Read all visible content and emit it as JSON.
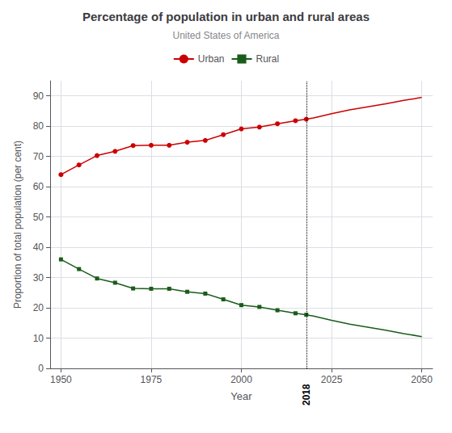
{
  "chart_data": {
    "type": "line",
    "title": "Percentage of population in urban and rural areas",
    "subtitle": "United States of America",
    "xlabel": "Year",
    "ylabel": "Proportion of total population (per cent)",
    "x": [
      1950,
      1955,
      1960,
      1965,
      1970,
      1975,
      1980,
      1985,
      1990,
      1995,
      2000,
      2005,
      2010,
      2015,
      2018,
      2020,
      2025,
      2030,
      2035,
      2040,
      2045,
      2050
    ],
    "series": [
      {
        "name": "Urban",
        "color": "#cc0000",
        "marker": "circle",
        "values": [
          64.0,
          67.2,
          70.3,
          71.7,
          73.6,
          73.7,
          73.7,
          74.7,
          75.3,
          77.2,
          79.1,
          79.7,
          80.8,
          81.8,
          82.3,
          82.7,
          84.1,
          85.4,
          86.4,
          87.4,
          88.5,
          89.5
        ]
      },
      {
        "name": "Rural",
        "color": "#1a5c1a",
        "marker": "square",
        "values": [
          36.0,
          32.8,
          29.7,
          28.3,
          26.4,
          26.3,
          26.3,
          25.3,
          24.7,
          22.8,
          20.9,
          20.3,
          19.2,
          18.2,
          17.7,
          17.3,
          15.9,
          14.6,
          13.6,
          12.6,
          11.5,
          10.5
        ]
      }
    ],
    "annotations": [
      {
        "text": "2018",
        "x": 2018
      }
    ],
    "xlim": [
      1947,
      2053
    ],
    "ylim": [
      0,
      95
    ],
    "xticks": [
      1950,
      1975,
      2000,
      2025,
      2050
    ],
    "yticks": [
      0,
      10,
      20,
      30,
      40,
      50,
      60,
      70,
      80,
      90
    ],
    "grid": true,
    "legend": "top"
  }
}
